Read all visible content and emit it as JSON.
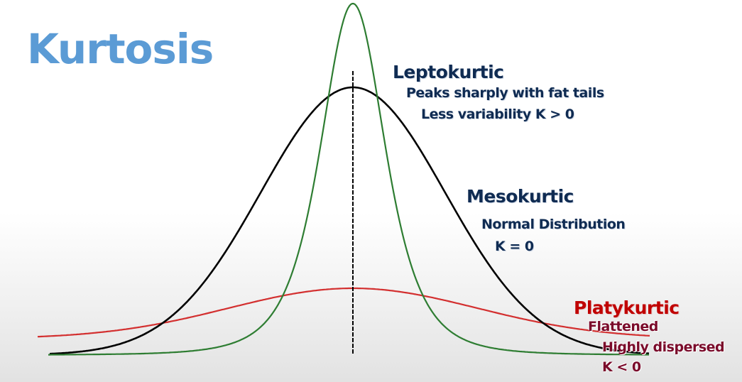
{
  "slide": {
    "title": "Kurtosis"
  },
  "curves": [
    {
      "key": "leptokurtic",
      "name": "Leptokurtic",
      "color": "#2e7d32",
      "descriptions": [
        "Peaks sharply with fat tails",
        "Less variability K > 0"
      ]
    },
    {
      "key": "mesokurtic",
      "name": "Mesokurtic",
      "color": "#000000",
      "descriptions": [
        "Normal Distribution",
        "K = 0"
      ]
    },
    {
      "key": "platykurtic",
      "name": "Platykurtic",
      "color": "#d32f2f",
      "descriptions": [
        "Flattened",
        "Highly dispersed",
        "K < 0"
      ]
    }
  ],
  "center_line": {
    "color": "#000000",
    "style": "dashed"
  }
}
